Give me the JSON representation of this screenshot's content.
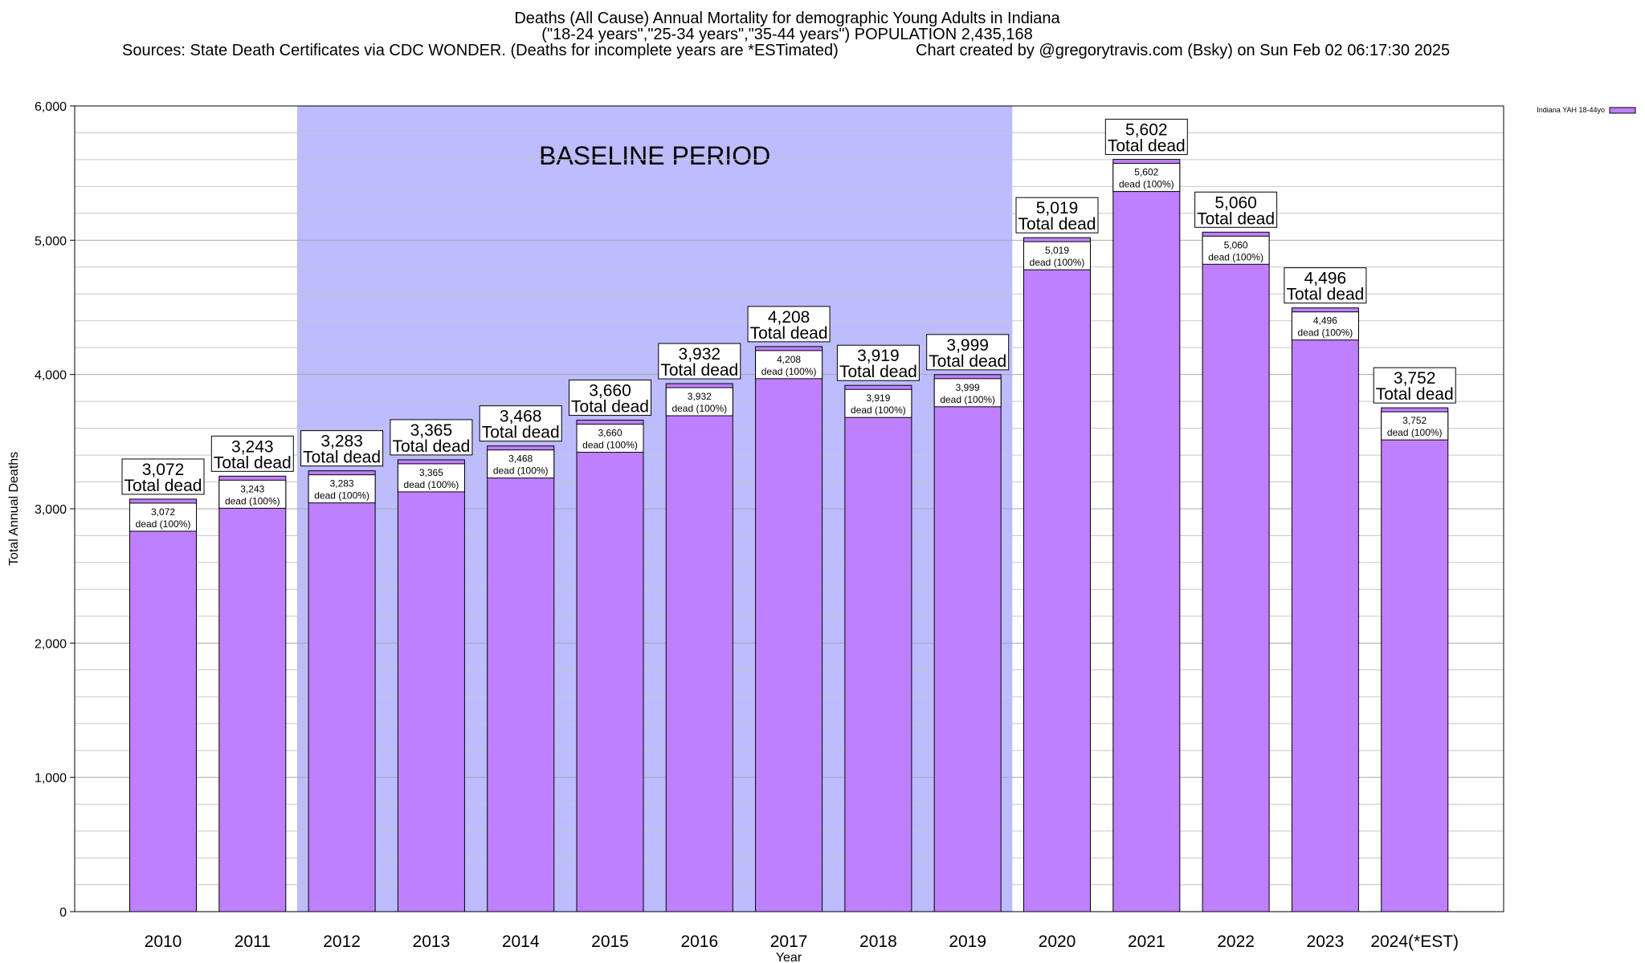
{
  "title": {
    "line1": "Deaths (All Cause) Annual Mortality for demographic Young Adults in Indiana",
    "line2": "(\"18-24 years\",\"25-34 years\",\"35-44 years\") POPULATION 2,435,168",
    "sources": "Sources: State Death Certificates via CDC WONDER. (Deaths for incomplete years are *ESTimated)",
    "credit": "Chart created by @gregorytravis.com (Bsky) on Sun Feb 02 06:17:30 2025"
  },
  "colors": {
    "bar": "#bf80ff",
    "baseline_shade": "#bcbcff",
    "gridline": "#c8c8c8"
  },
  "chart_data": {
    "type": "bar",
    "categories": [
      "2010",
      "2011",
      "2012",
      "2013",
      "2014",
      "2015",
      "2016",
      "2017",
      "2018",
      "2019",
      "2020",
      "2021",
      "2022",
      "2023",
      "2024(*EST)"
    ],
    "series": [
      {
        "name": "Indiana YAH 18-44yo",
        "values": [
          3072,
          3243,
          3283,
          3365,
          3468,
          3660,
          3932,
          4208,
          3919,
          3999,
          5019,
          5602,
          5060,
          4496,
          3752
        ]
      }
    ],
    "value_labels": [
      "3,072",
      "3,243",
      "3,283",
      "3,365",
      "3,468",
      "3,660",
      "3,932",
      "4,208",
      "3,919",
      "3,999",
      "5,019",
      "5,602",
      "5,060",
      "4,496",
      "3,752"
    ],
    "total_label_suffix": "Total dead",
    "inner_label_suffix": "dead (100%)",
    "xlabel": "Year",
    "ylabel": "Total Annual Deaths",
    "ylim": [
      0,
      6000
    ],
    "yticks": [
      0,
      1000,
      2000,
      3000,
      4000,
      5000,
      6000
    ],
    "ytick_labels": [
      "0",
      "1,000",
      "2,000",
      "3,000",
      "4,000",
      "5,000",
      "6,000"
    ],
    "grid": true,
    "legend_position": "top-right",
    "annotation": {
      "text": "BASELINE PERIOD",
      "from": "2012",
      "to": "2019"
    }
  }
}
